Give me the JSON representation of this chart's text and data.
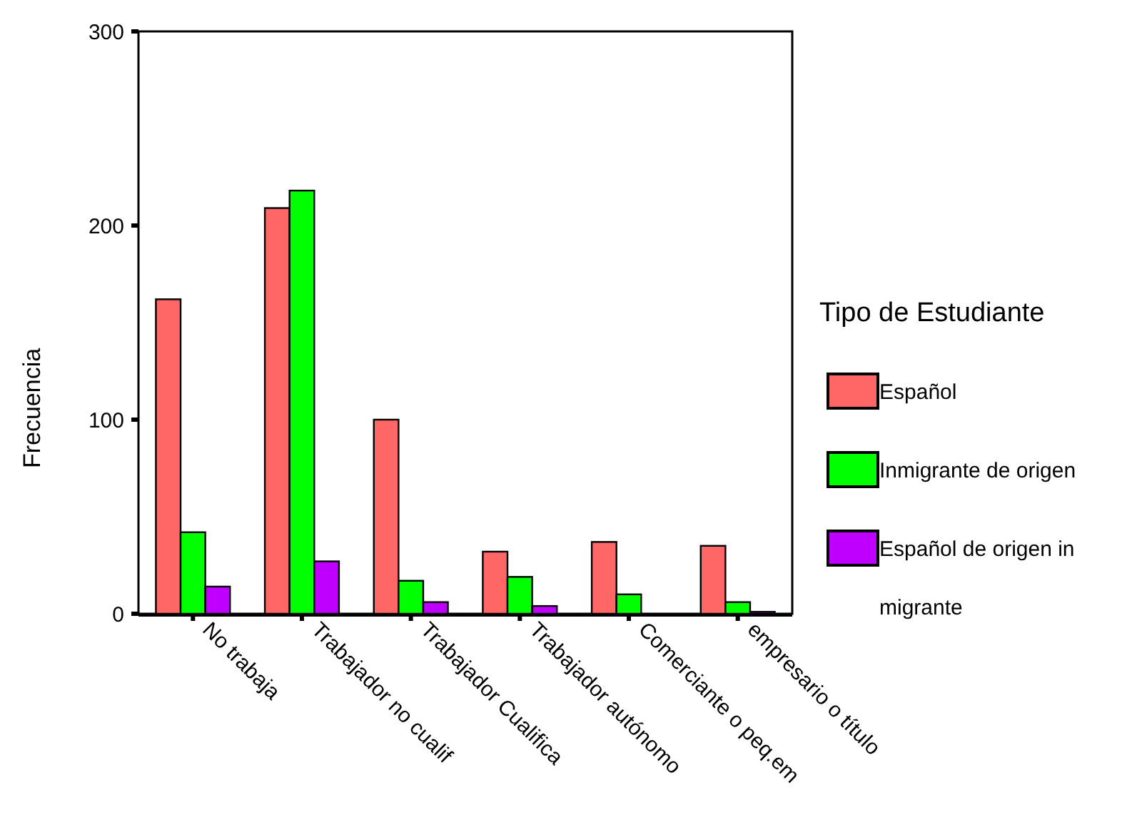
{
  "chart_data": {
    "type": "bar",
    "ylabel": "Frecuencia",
    "legend_title": "Tipo de Estudiante",
    "legend": "right",
    "grid": false,
    "categories": [
      "No trabaja",
      "Trabajador no cualif",
      "Trabajador Cualifica",
      "Trabajador autónomo",
      "Comerciante o peq.em",
      "empresario o título"
    ],
    "series": [
      {
        "name": "Español",
        "color": "#ff6666",
        "values": [
          162,
          209,
          100,
          32,
          37,
          35
        ]
      },
      {
        "name": "Inmigrante de origen",
        "color": "#00ff00",
        "values": [
          42,
          218,
          17,
          19,
          10,
          6
        ]
      },
      {
        "name": "Español de origen inmigrante",
        "color": "#bf00ff",
        "values": [
          14,
          27,
          6,
          4,
          0,
          1
        ]
      }
    ],
    "ylim": [
      0,
      300
    ],
    "yticks": [
      0,
      100,
      200,
      300
    ]
  }
}
